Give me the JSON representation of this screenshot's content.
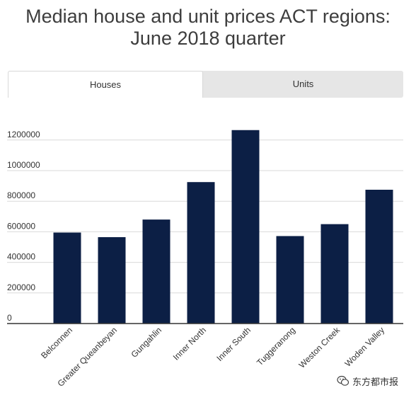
{
  "title_line1": "Median house and unit prices ACT regions:",
  "title_line2": "June 2018 quarter",
  "tabs": [
    {
      "label": "Houses",
      "active": true
    },
    {
      "label": "Units",
      "active": false
    }
  ],
  "watermark": {
    "text": "东方都市报",
    "icon": "wechat-icon"
  },
  "colors": {
    "bar": "#0c1f45",
    "gridline": "#d9d9d9",
    "axis": "#333333",
    "tab_bg": "#e6e6e6"
  },
  "chart_data": {
    "type": "bar",
    "categories": [
      "Belconnen",
      "Greater Queanbeyan",
      "Gungahlin",
      "Inner North",
      "Inner South",
      "Tuggeranong",
      "Weston Creek",
      "Woden Valley"
    ],
    "values": [
      595000,
      565000,
      680000,
      925000,
      1265000,
      572000,
      650000,
      875000
    ],
    "yticks": [
      0,
      200000,
      400000,
      600000,
      800000,
      1000000,
      1200000
    ],
    "ylim": [
      0,
      1300000
    ],
    "title": "",
    "xlabel": "",
    "ylabel": "",
    "grid": true,
    "legend": "none"
  }
}
